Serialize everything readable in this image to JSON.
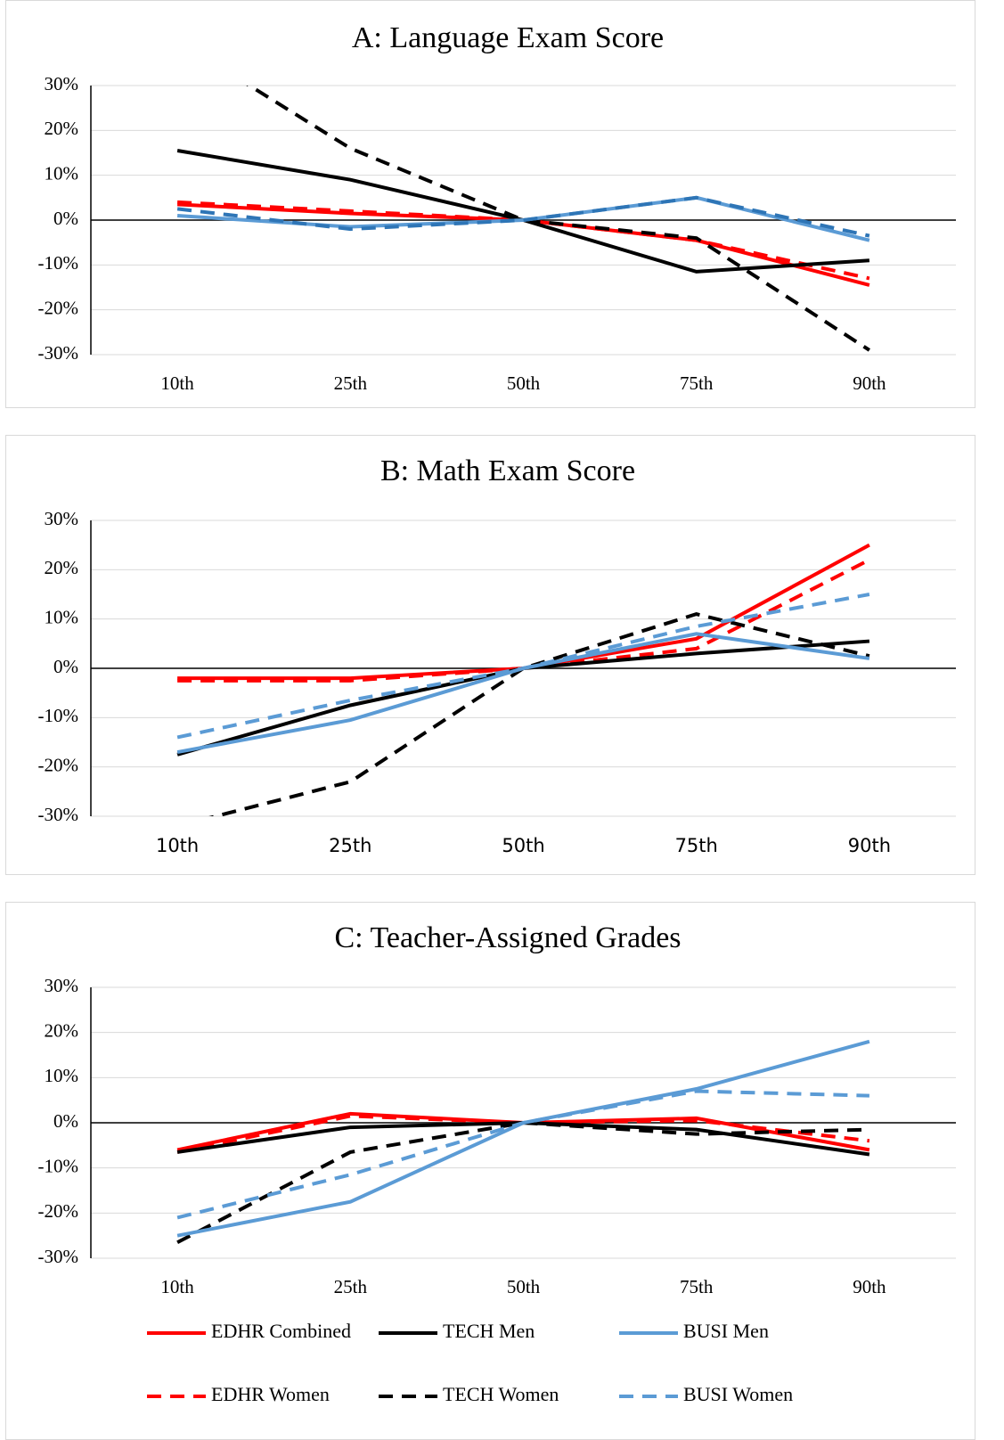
{
  "chart_data": [
    {
      "type": "line",
      "title": "A:  Language Exam Score",
      "categories": [
        "10th",
        "25th",
        "50th",
        "75th",
        "90th"
      ],
      "ylim": [
        -30,
        30
      ],
      "yticks": [
        {
          "value": -30,
          "label": "-30%"
        },
        {
          "value": -20,
          "label": "-20%"
        },
        {
          "value": -10,
          "label": "-10%"
        },
        {
          "value": 0,
          "label": "0%"
        },
        {
          "value": 10,
          "label": "10%"
        },
        {
          "value": 20,
          "label": "20%"
        },
        {
          "value": 30,
          "label": "30%"
        }
      ],
      "grid": true,
      "series": [
        {
          "color": "#ff0000",
          "dash": false,
          "values": [
            3.5,
            1.5,
            0,
            -4.5,
            -14.5
          ]
        },
        {
          "color": "#ff0000",
          "dash": true,
          "values": [
            4,
            2,
            0,
            -4.5,
            -13
          ]
        },
        {
          "color": "#000000",
          "dash": false,
          "values": [
            15.5,
            9,
            0,
            -11.5,
            -9
          ]
        },
        {
          "color": "#000000",
          "dash": true,
          "values": [
            40,
            16,
            0,
            -4,
            -29
          ]
        },
        {
          "color": "#5b9bd5",
          "dash": false,
          "values": [
            1,
            -1.5,
            0,
            5,
            -4.5
          ]
        },
        {
          "color": "#2e75b6",
          "dash": true,
          "values": [
            2.5,
            -2,
            0,
            5,
            -3.5
          ]
        }
      ]
    },
    {
      "type": "line",
      "title": "B:  Math Exam Score",
      "categories": [
        "10th",
        "25th",
        "50th",
        "75th",
        "90th"
      ],
      "ylim": [
        -30,
        30
      ],
      "yticks": [
        {
          "value": -30,
          "label": "-30%"
        },
        {
          "value": -20,
          "label": "-20%"
        },
        {
          "value": -10,
          "label": "-10%"
        },
        {
          "value": 0,
          "label": "0%"
        },
        {
          "value": 10,
          "label": "10%"
        },
        {
          "value": 20,
          "label": "20%"
        },
        {
          "value": 30,
          "label": "30%"
        }
      ],
      "grid": true,
      "series": [
        {
          "color": "#ff0000",
          "dash": false,
          "values": [
            -2,
            -2,
            0,
            6,
            25
          ]
        },
        {
          "color": "#ff0000",
          "dash": true,
          "values": [
            -2.5,
            -2.5,
            0,
            4,
            22
          ]
        },
        {
          "color": "#000000",
          "dash": false,
          "values": [
            -17.5,
            -7.5,
            0,
            3,
            5.5
          ]
        },
        {
          "color": "#000000",
          "dash": true,
          "values": [
            -32,
            -23,
            0,
            11,
            2.5
          ]
        },
        {
          "color": "#5b9bd5",
          "dash": false,
          "values": [
            -17,
            -10.5,
            0,
            7,
            2
          ]
        },
        {
          "color": "#5b9bd5",
          "dash": true,
          "values": [
            -14,
            -6.5,
            0,
            8.5,
            15
          ]
        }
      ]
    },
    {
      "type": "line",
      "title": "C:  Teacher-Assigned Grades",
      "categories": [
        "10th",
        "25th",
        "50th",
        "75th",
        "90th"
      ],
      "ylim": [
        -30,
        30
      ],
      "yticks": [
        {
          "value": -30,
          "label": "-30%"
        },
        {
          "value": -20,
          "label": "-20%"
        },
        {
          "value": -10,
          "label": "-10%"
        },
        {
          "value": 0,
          "label": "0%"
        },
        {
          "value": 10,
          "label": "10%"
        },
        {
          "value": 20,
          "label": "20%"
        },
        {
          "value": 30,
          "label": "30%"
        }
      ],
      "grid": true,
      "series": [
        {
          "name": "EDHR Combined",
          "color": "#ff0000",
          "dash": false,
          "values": [
            -6,
            2,
            0,
            1,
            -6
          ]
        },
        {
          "name": "EDHR Women",
          "color": "#ff0000",
          "dash": true,
          "values": [
            -6.5,
            1.5,
            0,
            0.5,
            -4
          ]
        },
        {
          "name": "TECH Men",
          "color": "#000000",
          "dash": false,
          "values": [
            -6.5,
            -1,
            0,
            -1.5,
            -7
          ]
        },
        {
          "name": "TECH Women",
          "color": "#000000",
          "dash": true,
          "values": [
            -26.5,
            -6.5,
            0,
            -2.5,
            -1.5
          ]
        },
        {
          "name": "BUSI Men",
          "color": "#5b9bd5",
          "dash": false,
          "values": [
            -25,
            -17.5,
            0,
            7.5,
            18
          ]
        },
        {
          "name": "BUSI Women",
          "color": "#5b9bd5",
          "dash": true,
          "values": [
            -21,
            -11.5,
            0,
            7,
            6
          ]
        }
      ]
    }
  ]
}
